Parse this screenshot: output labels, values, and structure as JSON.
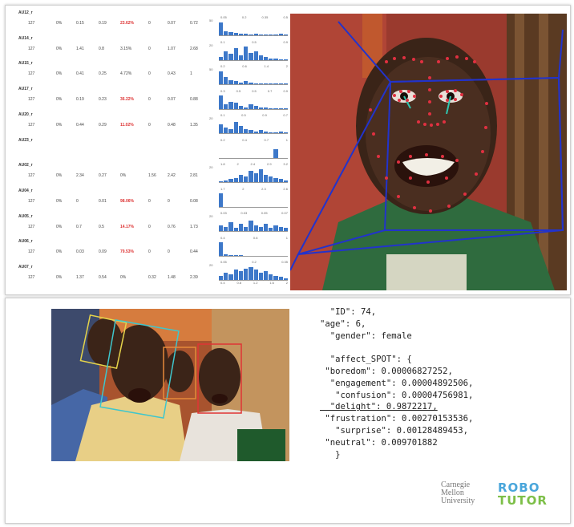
{
  "au_rows": [
    {
      "name": "AU12_r",
      "cells": [
        "127",
        "0%",
        "0.15",
        "0.19",
        "23.62%",
        "0",
        "0.07",
        "0.72"
      ],
      "red": 4
    },
    {
      "name": "AU14_r",
      "cells": [
        "127",
        "0%",
        "1.41",
        "0.8",
        "3.15%",
        "0",
        "1.07",
        "2.68"
      ],
      "red": -1
    },
    {
      "name": "AU15_r",
      "cells": [
        "127",
        "0%",
        "0.41",
        "0.25",
        "4.72%",
        "0",
        "0.43",
        "1"
      ],
      "red": -1
    },
    {
      "name": "AU17_r",
      "cells": [
        "127",
        "0%",
        "0.19",
        "0.23",
        "36.22%",
        "0",
        "0.07",
        "0.88"
      ],
      "red": 4
    },
    {
      "name": "AU20_r",
      "cells": [
        "127",
        "0%",
        "0.44",
        "0.29",
        "11.02%",
        "0",
        "0.48",
        "1.35"
      ],
      "red": 4
    },
    {
      "name": "AU23_r",
      "cells": [],
      "red": -1
    },
    {
      "name": "AU02_r",
      "cells": [
        "127",
        "0%",
        "2.34",
        "0.27",
        "0%",
        "1.56",
        "2.42",
        "2.81"
      ],
      "red": -1
    },
    {
      "name": "AU04_r",
      "cells": [
        "127",
        "0%",
        "0",
        "0.01",
        "98.06%",
        "0",
        "0",
        "0.08"
      ],
      "red": 4
    },
    {
      "name": "AU05_r",
      "cells": [
        "127",
        "0%",
        "0.7",
        "0.5",
        "14.17%",
        "0",
        "0.76",
        "1.73"
      ],
      "red": 4
    },
    {
      "name": "AU06_r",
      "cells": [
        "127",
        "0%",
        "0.03",
        "0.09",
        "79.53%",
        "0",
        "0",
        "0.44"
      ],
      "red": 4
    },
    {
      "name": "AU07_r",
      "cells": [
        "127",
        "0%",
        "1.37",
        "0.54",
        "0%",
        "0.32",
        "1.48",
        "2.39"
      ],
      "red": -1
    }
  ],
  "histograms": [
    {
      "labels": [
        "0.05",
        "0.2",
        "0.35",
        "0.5"
      ],
      "y": "50",
      "bars": [
        0.9,
        0.3,
        0.25,
        0.15,
        0.1,
        0.1,
        0.05,
        0.1,
        0.05,
        0.05,
        0.05,
        0.05,
        0.1,
        0.05
      ]
    },
    {
      "labels": [
        "0.1",
        "0.5",
        "0.9"
      ],
      "y": "20",
      "bars": [
        0.2,
        0.6,
        0.4,
        0.8,
        0.3,
        0.9,
        0.5,
        0.6,
        0.3,
        0.2,
        0.1,
        0.1,
        0.05,
        0.05
      ]
    },
    {
      "labels": [
        "0.2",
        "0.6",
        "1.4",
        "2"
      ],
      "y": "50",
      "bars": [
        0.9,
        0.5,
        0.3,
        0.2,
        0.1,
        0.2,
        0.1,
        0.05,
        0.05,
        0.05,
        0.05,
        0.05,
        0.05,
        0.05
      ]
    },
    {
      "labels": [
        "0.3",
        "0.5",
        "0.5",
        "0.7",
        "0.9"
      ],
      "y": "",
      "bars": [
        0.9,
        0.3,
        0.5,
        0.4,
        0.2,
        0.1,
        0.3,
        0.2,
        0.1,
        0.1,
        0.05,
        0.05,
        0.05,
        0.05
      ]
    },
    {
      "labels": [
        "0.1",
        "0.5",
        "0.9",
        "0.7"
      ],
      "y": "20",
      "bars": [
        0.6,
        0.4,
        0.3,
        0.8,
        0.5,
        0.3,
        0.2,
        0.1,
        0.2,
        0.1,
        0.05,
        0.05,
        0.1,
        0.05
      ]
    },
    {
      "labels": [
        "0.2",
        "0.4",
        "0.7",
        "1"
      ],
      "y": "",
      "bars": [
        0,
        0,
        0,
        0,
        0,
        0,
        0,
        0,
        0,
        0,
        0,
        0.6,
        0,
        0
      ]
    },
    {
      "labels": [
        "1.8",
        "2",
        "2.4",
        "2.9",
        "3.2"
      ],
      "y": "20",
      "bars": [
        0.05,
        0.1,
        0.2,
        0.3,
        0.5,
        0.4,
        0.8,
        0.6,
        0.9,
        0.5,
        0.4,
        0.3,
        0.2,
        0.1
      ]
    },
    {
      "labels": [
        "1.7",
        "2",
        "2.3",
        "2.6"
      ],
      "y": "",
      "bars": [
        0.9,
        0,
        0,
        0,
        0,
        0,
        0,
        0,
        0,
        0,
        0,
        0,
        0,
        0
      ]
    },
    {
      "labels": [
        "0.03",
        "0.03",
        "0.05",
        "0.07"
      ],
      "y": "20",
      "bars": [
        0.4,
        0.3,
        0.6,
        0.2,
        0.5,
        0.3,
        0.7,
        0.4,
        0.3,
        0.5,
        0.2,
        0.4,
        0.3,
        0.2
      ]
    },
    {
      "labels": [
        "0.4",
        "0.6",
        "1"
      ],
      "y": "",
      "bars": [
        0.9,
        0.1,
        0.05,
        0.05,
        0.05,
        0,
        0,
        0,
        0,
        0,
        0,
        0,
        0,
        0
      ]
    },
    {
      "labels": [
        "0.05",
        "0.2",
        "0.35"
      ],
      "y": "20",
      "bars": [
        0.3,
        0.5,
        0.4,
        0.7,
        0.6,
        0.8,
        0.9,
        0.7,
        0.5,
        0.6,
        0.4,
        0.3,
        0.2,
        0.1
      ]
    }
  ],
  "bottom_axis": [
    "0.4",
    "0.8",
    "1.2",
    "1.6",
    "2"
  ],
  "json_lines": [
    "  \"ID\": 74,",
    "\"age\": 6,",
    "  \"gender\": female",
    "",
    "  \"affect_SPOT\": {",
    " \"boredom\": 0.00006827252,",
    "  \"engagement\": 0.00004892506,",
    "   \"confusion\": 0.00004756981,",
    "  \"delight\": 0.9872217,",
    " \"frustration\": 0.00270153536,",
    "   \"surprise\": 0.00128489453,",
    " \"neutral\": 0.009701882",
    "   }"
  ],
  "logos": {
    "cmu": [
      "Carnegie",
      "Mellon",
      "University"
    ],
    "robo": "ROBO",
    "tutor": "TUTOR"
  }
}
